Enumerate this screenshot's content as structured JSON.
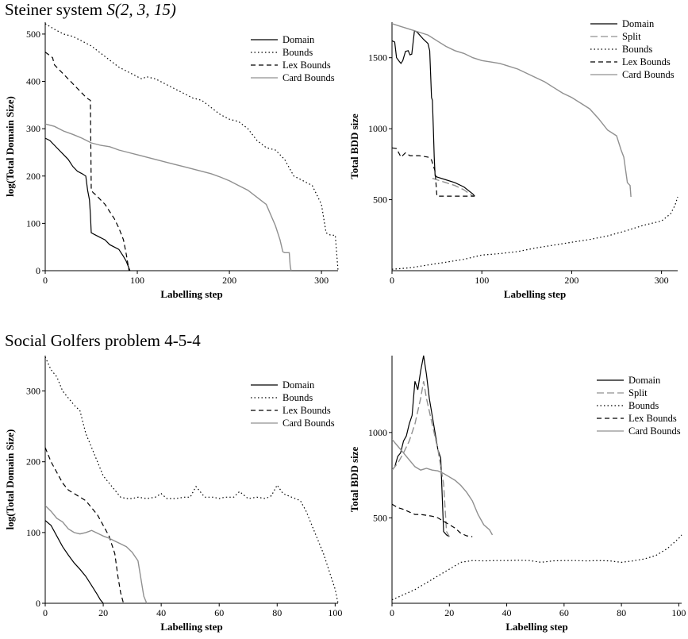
{
  "sections": [
    {
      "title_text": "Steiner system ",
      "title_math": "S(2, 3, 15)"
    },
    {
      "title_text": "Social Golfers problem 4-5-4",
      "title_math": ""
    }
  ],
  "chart_data": [
    {
      "id": "steiner-domain",
      "type": "line",
      "title": "",
      "xlabel": "Labelling step",
      "ylabel": "log(Total Domain Size)",
      "xlim": [
        0,
        318
      ],
      "ylim": [
        0,
        525
      ],
      "xticks": [
        0,
        100,
        200,
        300
      ],
      "yticks": [
        0,
        100,
        200,
        300,
        400,
        500
      ],
      "legend_position": "top-right",
      "grid": false,
      "series": [
        {
          "name": "Domain",
          "style": "solid",
          "color": "#000000",
          "x": [
            0,
            5,
            10,
            15,
            20,
            25,
            30,
            35,
            40,
            44,
            46,
            48,
            49,
            50,
            55,
            60,
            65,
            70,
            75,
            80,
            85,
            88,
            90,
            92
          ],
          "y": [
            280,
            275,
            265,
            255,
            245,
            235,
            220,
            210,
            205,
            200,
            170,
            150,
            120,
            80,
            75,
            70,
            65,
            55,
            50,
            45,
            30,
            20,
            10,
            0
          ]
        },
        {
          "name": "Bounds",
          "style": "dotted",
          "color": "#000000",
          "x": [
            0,
            10,
            20,
            30,
            40,
            50,
            60,
            70,
            80,
            90,
            100,
            105,
            110,
            120,
            130,
            140,
            150,
            160,
            170,
            180,
            190,
            200,
            210,
            220,
            230,
            240,
            250,
            260,
            270,
            280,
            290,
            300,
            305,
            310,
            315,
            318
          ],
          "y": [
            522,
            510,
            500,
            495,
            485,
            475,
            460,
            445,
            430,
            420,
            410,
            405,
            410,
            405,
            395,
            385,
            375,
            365,
            360,
            345,
            330,
            320,
            315,
            300,
            275,
            260,
            255,
            235,
            200,
            190,
            180,
            140,
            80,
            75,
            75,
            0
          ]
        },
        {
          "name": "Lex Bounds",
          "style": "dashed",
          "color": "#000000",
          "x": [
            0,
            8,
            10,
            15,
            20,
            25,
            30,
            35,
            40,
            45,
            49,
            50,
            52,
            55,
            60,
            65,
            70,
            75,
            80,
            85,
            88,
            91
          ],
          "y": [
            462,
            450,
            435,
            425,
            415,
            405,
            395,
            385,
            375,
            365,
            360,
            170,
            165,
            160,
            150,
            140,
            125,
            110,
            90,
            65,
            35,
            0
          ]
        },
        {
          "name": "Card Bounds",
          "style": "solid",
          "color": "#909090",
          "x": [
            0,
            10,
            20,
            30,
            40,
            50,
            60,
            70,
            80,
            90,
            100,
            110,
            120,
            130,
            140,
            150,
            160,
            170,
            180,
            190,
            200,
            210,
            220,
            230,
            240,
            250,
            255,
            258,
            260,
            265,
            266,
            267
          ],
          "y": [
            310,
            305,
            295,
            288,
            280,
            270,
            265,
            262,
            255,
            250,
            245,
            240,
            235,
            230,
            225,
            220,
            215,
            210,
            205,
            198,
            190,
            180,
            170,
            155,
            140,
            95,
            65,
            40,
            38,
            38,
            10,
            0
          ]
        }
      ]
    },
    {
      "id": "steiner-bdd",
      "type": "line",
      "title": "",
      "xlabel": "Labelling step",
      "ylabel": "Total BDD size",
      "xlim": [
        0,
        318
      ],
      "ylim": [
        0,
        1750
      ],
      "xticks": [
        0,
        100,
        200,
        300
      ],
      "yticks": [
        500,
        1000,
        1500
      ],
      "legend_position": "top-right",
      "grid": false,
      "series": [
        {
          "name": "Domain",
          "style": "solid",
          "color": "#000000",
          "x": [
            0,
            3,
            5,
            8,
            10,
            12,
            15,
            18,
            20,
            22,
            25,
            28,
            30,
            35,
            40,
            42,
            44,
            45,
            46,
            47,
            48,
            49,
            50,
            60,
            70,
            80,
            90,
            92
          ],
          "y": [
            1620,
            1610,
            1500,
            1475,
            1460,
            1480,
            1545,
            1550,
            1520,
            1525,
            1690,
            1680,
            1665,
            1630,
            1600,
            1550,
            1220,
            1200,
            1000,
            800,
            670,
            665,
            660,
            640,
            620,
            590,
            540,
            525
          ]
        },
        {
          "name": "Split",
          "style": "longdash",
          "color": "#909090",
          "x": [
            45,
            50,
            60,
            70,
            80,
            90
          ],
          "y": [
            650,
            640,
            620,
            600,
            570,
            525
          ]
        },
        {
          "name": "Bounds",
          "style": "dotted",
          "color": "#000000",
          "x": [
            0,
            20,
            40,
            60,
            80,
            100,
            120,
            140,
            160,
            180,
            200,
            220,
            240,
            260,
            280,
            300,
            310,
            315,
            318
          ],
          "y": [
            10,
            20,
            40,
            60,
            80,
            110,
            120,
            135,
            160,
            180,
            200,
            220,
            245,
            280,
            320,
            350,
            400,
            460,
            520
          ]
        },
        {
          "name": "Lex Bounds",
          "style": "dashed",
          "color": "#000000",
          "x": [
            0,
            5,
            10,
            15,
            20,
            30,
            40,
            44,
            48,
            50,
            60,
            70,
            80,
            90,
            92
          ],
          "y": [
            865,
            860,
            800,
            830,
            810,
            810,
            800,
            780,
            700,
            525,
            525,
            525,
            525,
            525,
            525
          ]
        },
        {
          "name": "Card Bounds",
          "style": "solid",
          "color": "#909090",
          "x": [
            0,
            10,
            20,
            30,
            40,
            50,
            60,
            70,
            80,
            90,
            100,
            110,
            120,
            130,
            140,
            150,
            160,
            170,
            180,
            190,
            200,
            210,
            220,
            230,
            240,
            250,
            255,
            258,
            262,
            265,
            266
          ],
          "y": [
            1740,
            1720,
            1700,
            1680,
            1660,
            1620,
            1580,
            1550,
            1530,
            1500,
            1480,
            1470,
            1460,
            1440,
            1420,
            1390,
            1360,
            1330,
            1290,
            1250,
            1220,
            1180,
            1140,
            1070,
            990,
            950,
            850,
            800,
            620,
            600,
            520
          ]
        }
      ]
    },
    {
      "id": "golfers-domain",
      "type": "line",
      "title": "",
      "xlabel": "Labelling step",
      "ylabel": "log(Total Domain Size)",
      "xlim": [
        0,
        101
      ],
      "ylim": [
        0,
        350
      ],
      "xticks": [
        0,
        20,
        40,
        60,
        80,
        100
      ],
      "yticks": [
        0,
        100,
        200,
        300
      ],
      "legend_position": "top-right",
      "grid": false,
      "series": [
        {
          "name": "Domain",
          "style": "solid",
          "color": "#000000",
          "x": [
            0,
            2,
            4,
            6,
            8,
            10,
            12,
            14,
            16,
            18,
            19,
            20
          ],
          "y": [
            117,
            110,
            95,
            80,
            68,
            57,
            48,
            38,
            25,
            12,
            5,
            0
          ]
        },
        {
          "name": "Bounds",
          "style": "dotted",
          "color": "#000000",
          "x": [
            0,
            2,
            4,
            6,
            8,
            10,
            12,
            14,
            16,
            18,
            20,
            22,
            24,
            26,
            28,
            30,
            32,
            35,
            38,
            40,
            42,
            45,
            48,
            50,
            52,
            55,
            58,
            60,
            62,
            65,
            67,
            70,
            73,
            76,
            78,
            80,
            82,
            85,
            88,
            90,
            92,
            94,
            96,
            98,
            100,
            101
          ],
          "y": [
            348,
            330,
            320,
            300,
            290,
            280,
            272,
            240,
            220,
            200,
            180,
            170,
            160,
            150,
            148,
            148,
            150,
            148,
            150,
            155,
            148,
            148,
            150,
            150,
            165,
            150,
            150,
            148,
            150,
            150,
            158,
            148,
            150,
            148,
            152,
            167,
            155,
            150,
            145,
            130,
            110,
            90,
            70,
            45,
            20,
            0
          ]
        },
        {
          "name": "Lex Bounds",
          "style": "dashed",
          "color": "#000000",
          "x": [
            0,
            2,
            4,
            6,
            8,
            10,
            12,
            14,
            16,
            18,
            20,
            22,
            24,
            25,
            26,
            27
          ],
          "y": [
            220,
            200,
            185,
            170,
            160,
            155,
            150,
            145,
            135,
            125,
            110,
            95,
            70,
            40,
            15,
            0
          ]
        },
        {
          "name": "Card Bounds",
          "style": "solid",
          "color": "#909090",
          "x": [
            0,
            2,
            4,
            6,
            8,
            10,
            12,
            14,
            16,
            18,
            20,
            22,
            24,
            26,
            28,
            30,
            32,
            34,
            35
          ],
          "y": [
            138,
            130,
            120,
            115,
            105,
            100,
            98,
            100,
            103,
            99,
            95,
            92,
            88,
            84,
            80,
            72,
            60,
            10,
            0
          ]
        }
      ]
    },
    {
      "id": "golfers-bdd",
      "type": "line",
      "title": "",
      "xlabel": "Labelling step",
      "ylabel": "Total BDD size",
      "xlim": [
        0,
        101
      ],
      "ylim": [
        0,
        1450
      ],
      "xticks": [
        0,
        20,
        40,
        60,
        80,
        100
      ],
      "yticks": [
        500,
        1000
      ],
      "legend_position": "top-right",
      "grid": false,
      "series": [
        {
          "name": "Domain",
          "style": "solid",
          "color": "#000000",
          "x": [
            0,
            1,
            2,
            3,
            4,
            5,
            6,
            7,
            8,
            9,
            10,
            11,
            12,
            13,
            14,
            15,
            16,
            17,
            18,
            19,
            20
          ],
          "y": [
            780,
            800,
            860,
            880,
            950,
            980,
            1050,
            1100,
            1300,
            1250,
            1360,
            1450,
            1340,
            1200,
            1100,
            1000,
            900,
            850,
            420,
            400,
            390
          ]
        },
        {
          "name": "Split",
          "style": "longdash",
          "color": "#909090",
          "x": [
            0,
            2,
            4,
            6,
            8,
            10,
            11,
            12,
            14,
            16,
            18,
            19,
            20
          ],
          "y": [
            780,
            820,
            880,
            950,
            1050,
            1200,
            1300,
            1200,
            1050,
            900,
            700,
            420,
            390
          ]
        },
        {
          "name": "Bounds",
          "style": "dotted",
          "color": "#000000",
          "x": [
            0,
            4,
            8,
            12,
            16,
            20,
            24,
            28,
            32,
            36,
            40,
            44,
            48,
            52,
            56,
            60,
            64,
            68,
            72,
            76,
            80,
            84,
            88,
            92,
            96,
            100,
            101
          ],
          "y": [
            20,
            50,
            80,
            120,
            160,
            200,
            240,
            250,
            248,
            250,
            250,
            252,
            250,
            240,
            248,
            250,
            250,
            248,
            250,
            248,
            240,
            248,
            260,
            280,
            320,
            380,
            400
          ]
        },
        {
          "name": "Lex Bounds",
          "style": "dashed",
          "color": "#000000",
          "x": [
            0,
            2,
            4,
            6,
            8,
            10,
            12,
            14,
            16,
            18,
            20,
            22,
            24,
            26,
            28
          ],
          "y": [
            580,
            560,
            550,
            535,
            520,
            520,
            515,
            510,
            500,
            480,
            460,
            440,
            410,
            395,
            390
          ]
        },
        {
          "name": "Card Bounds",
          "style": "solid",
          "color": "#909090",
          "x": [
            0,
            2,
            4,
            6,
            8,
            10,
            12,
            14,
            16,
            18,
            20,
            22,
            24,
            26,
            28,
            30,
            32,
            34,
            35
          ],
          "y": [
            960,
            920,
            880,
            840,
            800,
            780,
            790,
            780,
            775,
            760,
            740,
            720,
            690,
            650,
            600,
            520,
            460,
            430,
            400
          ]
        }
      ]
    }
  ]
}
